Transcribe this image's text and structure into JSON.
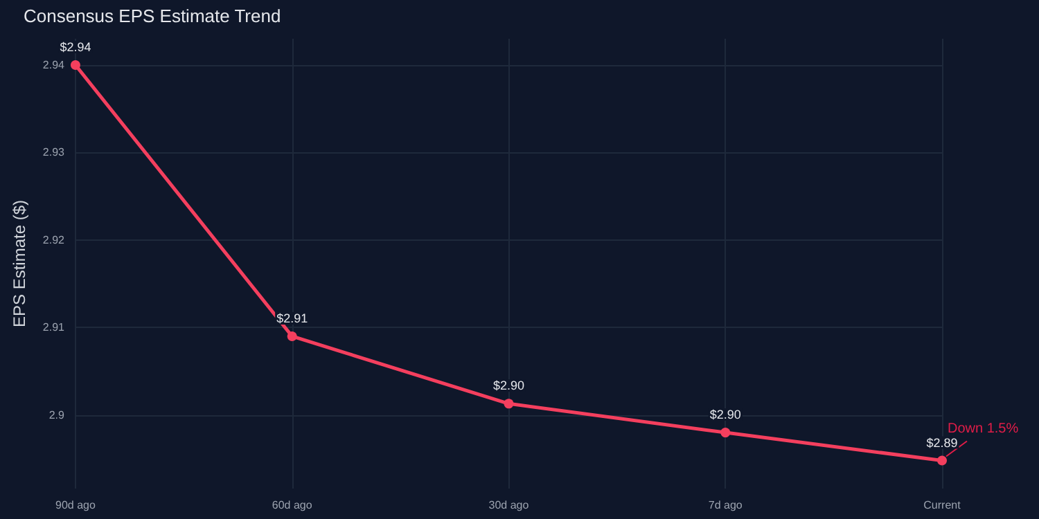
{
  "chart_data": {
    "type": "line",
    "title": "Consensus EPS Estimate Trend",
    "ylabel": "EPS Estimate ($)",
    "categories": [
      "90d ago",
      "60d ago",
      "30d ago",
      "7d ago",
      "Current"
    ],
    "series": [
      {
        "color": "#f43f5e",
        "values": [
          2.94,
          2.909,
          2.9013,
          2.898,
          2.8948
        ],
        "value_labels": [
          "$2.94",
          "$2.91",
          "$2.90",
          "$2.90",
          "$2.89"
        ]
      }
    ],
    "ylim": [
      2.8916,
      2.943
    ],
    "yticks": [
      2.9,
      2.91,
      2.92,
      2.93,
      2.94
    ],
    "grid": true,
    "marker": "circle",
    "line_style": "solid",
    "annotations": [
      {
        "text": "Down 1.5%",
        "x": "Current",
        "y": 2.8948
      }
    ]
  }
}
